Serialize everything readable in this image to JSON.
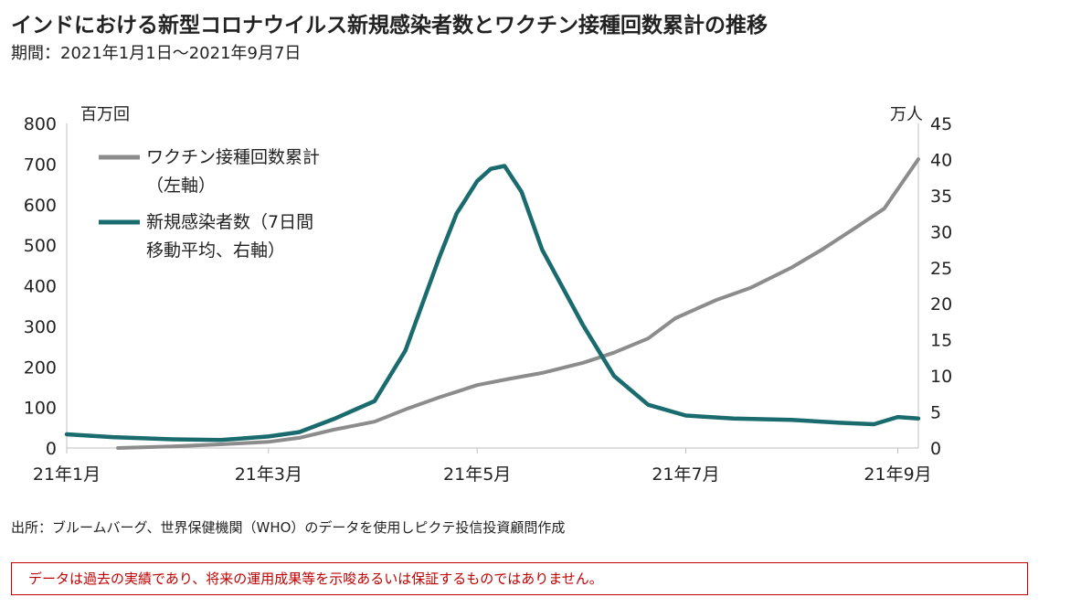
{
  "header": {
    "title": "インドにおける新型コロナウイルス新規感染者数とワクチン接種回数累計の推移",
    "period": "期間：2021年1月1日～2021年9月7日"
  },
  "footer": {
    "source": "出所：ブルームバーグ、世界保健機関（WHO）のデータを使用しピクテ投信投資顧問作成",
    "disclaimer": "データは過去の実績であり、将来の運用成果等を示唆あるいは保証するものではありません。"
  },
  "chart_data": {
    "type": "line",
    "y_left_unit": "百万回",
    "y_right_unit": "万人",
    "ylim_left": [
      0,
      800
    ],
    "ylim_right": [
      0,
      45
    ],
    "y_left_ticks": [
      0,
      100,
      200,
      300,
      400,
      500,
      600,
      700,
      800
    ],
    "y_right_ticks": [
      0,
      5,
      10,
      15,
      20,
      25,
      30,
      35,
      40,
      45
    ],
    "x_ticks": [
      {
        "date": "2021-01-01",
        "label": "21年1月"
      },
      {
        "date": "2021-03-01",
        "label": "21年3月"
      },
      {
        "date": "2021-05-01",
        "label": "21年5月"
      },
      {
        "date": "2021-07-01",
        "label": "21年7月"
      },
      {
        "date": "2021-09-01",
        "label": "21年9月"
      }
    ],
    "xlim": [
      "2021-01-01",
      "2021-09-07"
    ],
    "legend_position": "top-left",
    "series": [
      {
        "name": "ワクチン接種回数累計",
        "name_note": "（左軸）",
        "axis": "left",
        "color": "#8c8c8c",
        "points": [
          [
            "2021-01-16",
            0
          ],
          [
            "2021-02-01",
            4
          ],
          [
            "2021-02-15",
            9
          ],
          [
            "2021-03-01",
            15
          ],
          [
            "2021-03-10",
            25
          ],
          [
            "2021-03-20",
            45
          ],
          [
            "2021-04-01",
            65
          ],
          [
            "2021-04-10",
            95
          ],
          [
            "2021-04-20",
            125
          ],
          [
            "2021-05-01",
            155
          ],
          [
            "2021-05-10",
            170
          ],
          [
            "2021-05-20",
            185
          ],
          [
            "2021-06-01",
            210
          ],
          [
            "2021-06-10",
            235
          ],
          [
            "2021-06-20",
            270
          ],
          [
            "2021-06-28",
            320
          ],
          [
            "2021-07-10",
            365
          ],
          [
            "2021-07-20",
            395
          ],
          [
            "2021-08-01",
            445
          ],
          [
            "2021-08-10",
            490
          ],
          [
            "2021-08-20",
            545
          ],
          [
            "2021-08-28",
            590
          ],
          [
            "2021-09-07",
            712
          ]
        ]
      },
      {
        "name": "新規感染者数（7日間",
        "name_note": "移動平均、右軸）",
        "axis": "right",
        "color": "#1a6b6e",
        "points": [
          [
            "2021-01-01",
            1.9
          ],
          [
            "2021-01-15",
            1.5
          ],
          [
            "2021-02-01",
            1.2
          ],
          [
            "2021-02-15",
            1.1
          ],
          [
            "2021-03-01",
            1.6
          ],
          [
            "2021-03-10",
            2.2
          ],
          [
            "2021-03-20",
            4.0
          ],
          [
            "2021-04-01",
            6.5
          ],
          [
            "2021-04-10",
            13.5
          ],
          [
            "2021-04-20",
            26.5
          ],
          [
            "2021-04-25",
            32.5
          ],
          [
            "2021-05-01",
            37.0
          ],
          [
            "2021-05-05",
            38.7
          ],
          [
            "2021-05-09",
            39.1
          ],
          [
            "2021-05-14",
            35.5
          ],
          [
            "2021-05-20",
            27.5
          ],
          [
            "2021-06-01",
            17.0
          ],
          [
            "2021-06-10",
            10.0
          ],
          [
            "2021-06-20",
            6.0
          ],
          [
            "2021-07-01",
            4.5
          ],
          [
            "2021-07-15",
            4.1
          ],
          [
            "2021-08-01",
            3.9
          ],
          [
            "2021-08-15",
            3.5
          ],
          [
            "2021-08-25",
            3.3
          ],
          [
            "2021-09-01",
            4.3
          ],
          [
            "2021-09-07",
            4.1
          ]
        ]
      }
    ]
  }
}
